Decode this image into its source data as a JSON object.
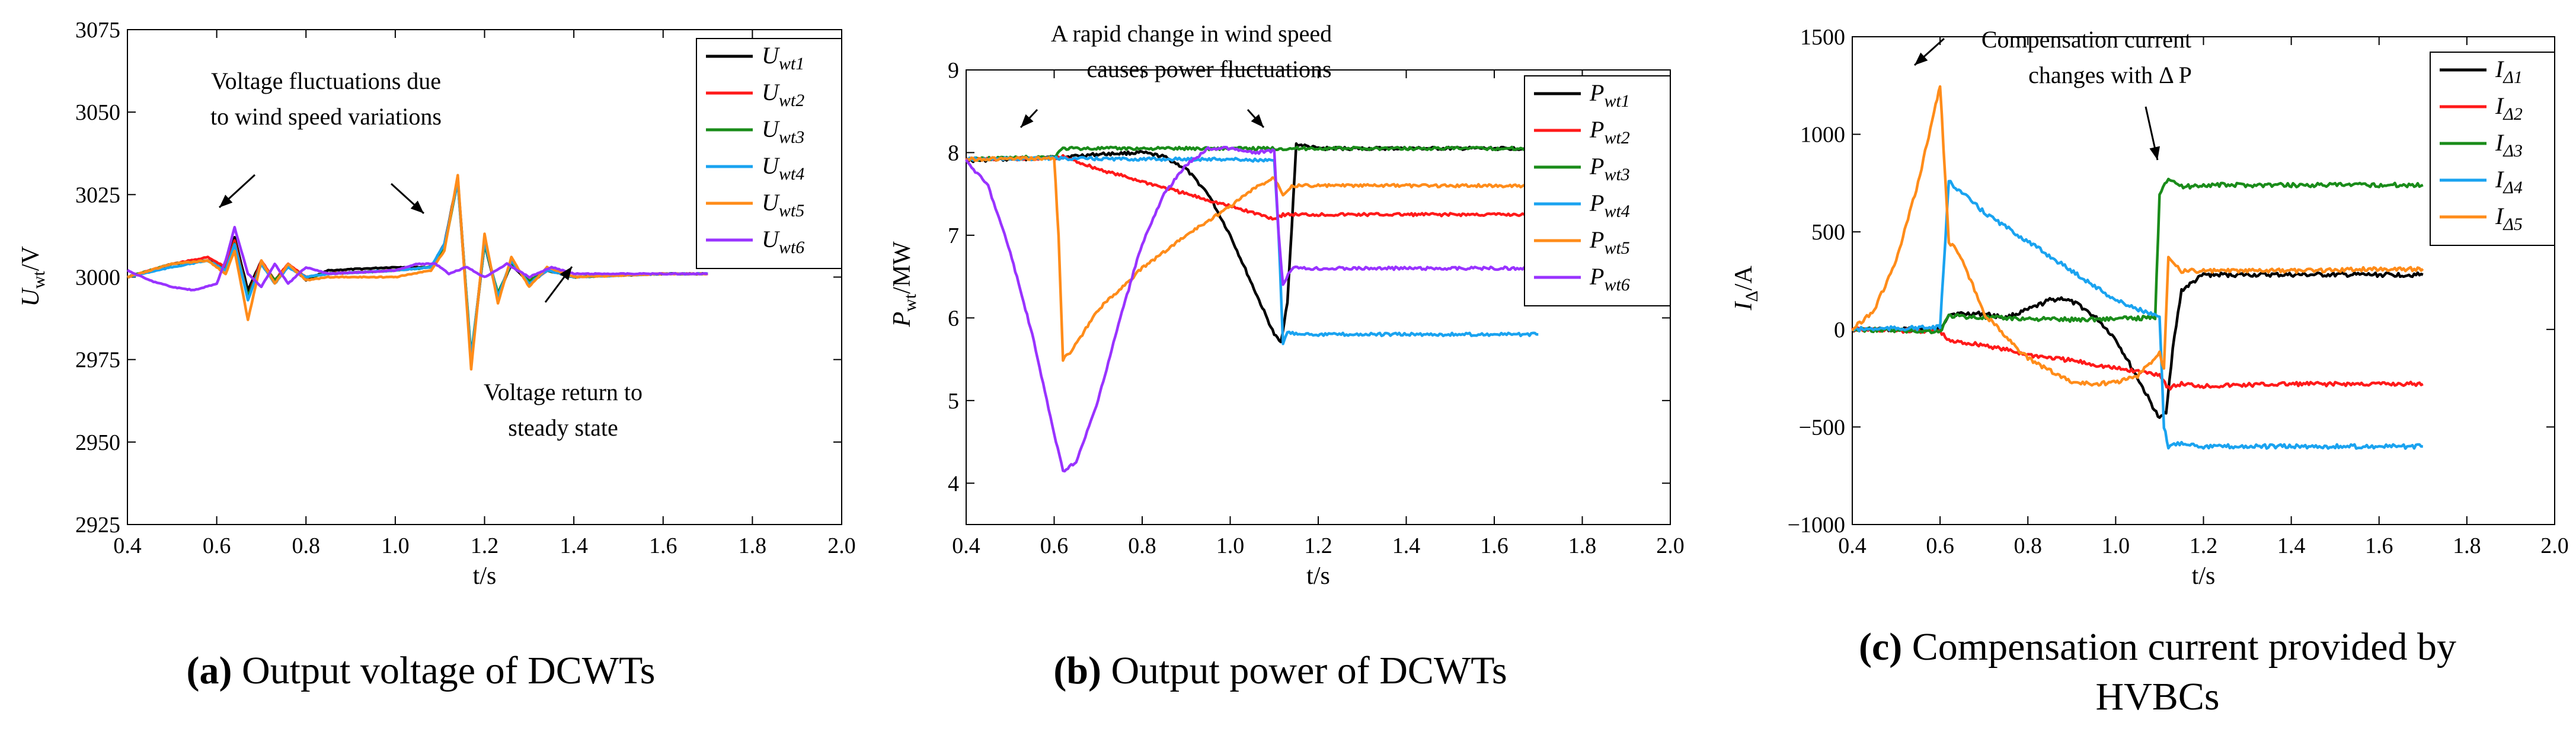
{
  "colors": {
    "black": "#000000",
    "red": "#ff1a1a",
    "green": "#1a8c1a",
    "blue": "#1aa3f0",
    "orange": "#ff8c1a",
    "purple": "#9933ff"
  },
  "chart_data": [
    {
      "type": "line",
      "id": "a",
      "caption_letter": "(a)",
      "caption_text": "Output voltage of DCWTs",
      "xlabel": "t/s",
      "ylabel_main": "U",
      "ylabel_sub": "wt",
      "ylabel_unit": "/V",
      "xlim": [
        0.4,
        2.0
      ],
      "ylim": [
        2925,
        3075
      ],
      "xticks": [
        0.4,
        0.6,
        0.8,
        1.0,
        1.2,
        1.4,
        1.6,
        1.8,
        2.0
      ],
      "xtick_labels": [
        "0.4",
        "0.6",
        "0.8",
        "1.0",
        "1.2",
        "1.4",
        "1.6",
        "1.8",
        "2.0"
      ],
      "yticks": [
        2925,
        2950,
        2975,
        3000,
        3025,
        3050,
        3075
      ],
      "ytick_labels": [
        "2925",
        "2950",
        "2975",
        "3000",
        "3025",
        "3050",
        "3075"
      ],
      "legend": [
        {
          "main": "U",
          "sub": "wt1",
          "color": "#000000"
        },
        {
          "main": "U",
          "sub": "wt2",
          "color": "#ff1a1a"
        },
        {
          "main": "U",
          "sub": "wt3",
          "color": "#1a8c1a"
        },
        {
          "main": "U",
          "sub": "wt4",
          "color": "#1aa3f0"
        },
        {
          "main": "U",
          "sub": "wt5",
          "color": "#ff8c1a"
        },
        {
          "main": "U",
          "sub": "wt6",
          "color": "#9933ff"
        }
      ],
      "annotations": [
        {
          "lines": [
            "Voltage fluctuations due",
            "to wind speed variations"
          ]
        },
        {
          "lines": [
            "Voltage return to",
            "steady state"
          ]
        }
      ],
      "series": [
        {
          "name": "Uwt1",
          "color": "#000000",
          "x": [
            0.4,
            0.5,
            0.58,
            0.62,
            0.64,
            0.67,
            0.7,
            0.73,
            0.76,
            0.8,
            0.85,
            1.0,
            1.08,
            1.11,
            1.14,
            1.17,
            1.2,
            1.23,
            1.26,
            1.3,
            1.34,
            1.4,
            1.6,
            1.7
          ],
          "y": [
            3000,
            3004,
            3005,
            3003,
            3012,
            2996,
            3005,
            2998,
            3004,
            2999,
            3002,
            3003,
            3003,
            3010,
            3030,
            2975,
            3010,
            2994,
            3004,
            2998,
            3002,
            3000,
            3001,
            3001
          ]
        },
        {
          "name": "Uwt2",
          "color": "#ff1a1a",
          "x": [
            0.4,
            0.5,
            0.58,
            0.62,
            0.64,
            0.67,
            0.7,
            0.73,
            0.76,
            0.8,
            0.85,
            1.0,
            1.08,
            1.11,
            1.14,
            1.17,
            1.2,
            1.23,
            1.26,
            1.3,
            1.34,
            1.4,
            1.6,
            1.7
          ],
          "y": [
            3000,
            3004,
            3006,
            3003,
            3011,
            2994,
            3005,
            2999,
            3004,
            3000,
            3001,
            3002,
            3003,
            3010,
            3029,
            2975,
            3011,
            2994,
            3005,
            2998,
            3002,
            3000,
            3001,
            3001
          ]
        },
        {
          "name": "Uwt3",
          "color": "#1a8c1a",
          "x": [
            0.4,
            0.5,
            0.58,
            0.62,
            0.64,
            0.67,
            0.7,
            0.73,
            0.76,
            0.8,
            0.85,
            1.0,
            1.08,
            1.11,
            1.14,
            1.17,
            1.2,
            1.23,
            1.26,
            1.3,
            1.34,
            1.4,
            1.6,
            1.7
          ],
          "y": [
            3000,
            3004,
            3005,
            3002,
            3010,
            2994,
            3004,
            2999,
            3003,
            3000,
            3001,
            3002,
            3003,
            3009,
            3029,
            2976,
            3010,
            2995,
            3004,
            2999,
            3002,
            3000,
            3001,
            3001
          ]
        },
        {
          "name": "Uwt4",
          "color": "#1aa3f0",
          "x": [
            0.4,
            0.5,
            0.58,
            0.62,
            0.64,
            0.67,
            0.7,
            0.73,
            0.76,
            0.8,
            0.85,
            1.0,
            1.08,
            1.11,
            1.14,
            1.17,
            1.2,
            1.23,
            1.26,
            1.3,
            1.34,
            1.4,
            1.6,
            1.7
          ],
          "y": [
            3000,
            3003,
            3005,
            3002,
            3010,
            2993,
            3004,
            2998,
            3003,
            3000,
            3001,
            3002,
            3003,
            3010,
            3029,
            2975,
            3011,
            2994,
            3005,
            2998,
            3002,
            3000,
            3001,
            3001
          ]
        },
        {
          "name": "Uwt5",
          "color": "#ff8c1a",
          "x": [
            0.4,
            0.5,
            0.58,
            0.62,
            0.64,
            0.67,
            0.7,
            0.73,
            0.76,
            0.8,
            0.85,
            1.0,
            1.08,
            1.11,
            1.14,
            1.17,
            1.2,
            1.23,
            1.26,
            1.3,
            1.34,
            1.4,
            1.6,
            1.7
          ],
          "y": [
            3000,
            3004,
            3005,
            3001,
            3008,
            2987,
            3005,
            2998,
            3004,
            2999,
            3000,
            3000,
            3002,
            3008,
            3031,
            2972,
            3013,
            2992,
            3006,
            2997,
            3003,
            3000,
            3001,
            3001
          ]
        },
        {
          "name": "Uwt6",
          "color": "#9933ff",
          "x": [
            0.4,
            0.45,
            0.5,
            0.55,
            0.6,
            0.62,
            0.64,
            0.67,
            0.7,
            0.73,
            0.76,
            0.8,
            0.85,
            1.0,
            1.05,
            1.09,
            1.12,
            1.16,
            1.2,
            1.25,
            1.3,
            1.35,
            1.4,
            1.6,
            1.7
          ],
          "y": [
            3002,
            2999,
            2997,
            2996,
            2998,
            3005,
            3015,
            3001,
            2997,
            3004,
            2998,
            3003,
            3001,
            3002,
            3004,
            3004,
            3001,
            3003,
            3000,
            3004,
            3000,
            3003,
            3001,
            3001,
            3001
          ]
        }
      ]
    },
    {
      "type": "line",
      "id": "b",
      "caption_letter": "(b)",
      "caption_text": "Output power of DCWTs",
      "xlabel": "t/s",
      "ylabel_main": "P",
      "ylabel_sub": "wt",
      "ylabel_unit": "/MW",
      "xlim": [
        0.4,
        2.0
      ],
      "ylim": [
        3.5,
        9
      ],
      "xticks": [
        0.4,
        0.6,
        0.8,
        1.0,
        1.2,
        1.4,
        1.6,
        1.8,
        2.0
      ],
      "xtick_labels": [
        "0.4",
        "0.6",
        "0.8",
        "1.0",
        "1.2",
        "1.4",
        "1.6",
        "1.8",
        "2.0"
      ],
      "yticks": [
        4,
        5,
        6,
        7,
        8,
        9
      ],
      "ytick_labels": [
        "4",
        "5",
        "6",
        "7",
        "8",
        "9"
      ],
      "legend": [
        {
          "main": "P",
          "sub": "wt1",
          "color": "#000000"
        },
        {
          "main": "P",
          "sub": "wt2",
          "color": "#ff1a1a"
        },
        {
          "main": "P",
          "sub": "wt3",
          "color": "#1a8c1a"
        },
        {
          "main": "P",
          "sub": "wt4",
          "color": "#1aa3f0"
        },
        {
          "main": "P",
          "sub": "wt5",
          "color": "#ff8c1a"
        },
        {
          "main": "P",
          "sub": "wt6",
          "color": "#9933ff"
        }
      ],
      "annotations": [
        {
          "lines": [
            "A rapid change in wind speed",
            "causes power fluctuations"
          ]
        }
      ],
      "series": [
        {
          "name": "Pwt1",
          "color": "#000000",
          "x": [
            0.4,
            0.5,
            0.6,
            0.7,
            0.8,
            0.85,
            0.9,
            0.95,
            1.0,
            1.05,
            1.1,
            1.115,
            1.13,
            1.14,
            1.15,
            1.2,
            1.4,
            1.6,
            1.7
          ],
          "y": [
            7.9,
            7.92,
            7.94,
            7.98,
            8.0,
            7.95,
            7.8,
            7.5,
            7.0,
            6.4,
            5.8,
            5.7,
            6.2,
            7.1,
            8.1,
            8.05,
            8.05,
            8.05,
            8.05
          ]
        },
        {
          "name": "Pwt2",
          "color": "#ff1a1a",
          "x": [
            0.4,
            0.6,
            0.62,
            0.7,
            0.8,
            0.9,
            1.0,
            1.1,
            1.12,
            1.2,
            1.4,
            1.6,
            1.7
          ],
          "y": [
            7.92,
            7.93,
            7.95,
            7.8,
            7.65,
            7.5,
            7.35,
            7.2,
            7.25,
            7.25,
            7.25,
            7.25,
            7.25
          ]
        },
        {
          "name": "Pwt3",
          "color": "#1a8c1a",
          "x": [
            0.4,
            0.6,
            0.62,
            0.7,
            0.8,
            0.9,
            1.0,
            1.1,
            1.2,
            1.4,
            1.6,
            1.7
          ],
          "y": [
            7.92,
            7.95,
            8.05,
            8.05,
            8.05,
            8.05,
            8.05,
            8.05,
            8.05,
            8.05,
            8.05,
            8.05
          ]
        },
        {
          "name": "Pwt4",
          "color": "#1aa3f0",
          "x": [
            0.4,
            0.6,
            0.8,
            1.0,
            1.1,
            1.11,
            1.12,
            1.13,
            1.2,
            1.4,
            1.6,
            1.7
          ],
          "y": [
            7.92,
            7.93,
            7.92,
            7.92,
            7.9,
            7.0,
            5.7,
            5.82,
            5.8,
            5.8,
            5.8,
            5.8
          ]
        },
        {
          "name": "Pwt5",
          "color": "#ff8c1a",
          "x": [
            0.4,
            0.6,
            0.61,
            0.62,
            0.64,
            0.7,
            0.8,
            0.9,
            1.0,
            1.05,
            1.1,
            1.12,
            1.14,
            1.2,
            1.4,
            1.6,
            1.7
          ],
          "y": [
            7.92,
            7.93,
            7.0,
            5.5,
            5.6,
            6.1,
            6.6,
            7.0,
            7.35,
            7.55,
            7.7,
            7.5,
            7.6,
            7.6,
            7.6,
            7.6,
            7.6
          ]
        },
        {
          "name": "Pwt6",
          "color": "#9933ff",
          "x": [
            0.4,
            0.45,
            0.5,
            0.55,
            0.6,
            0.62,
            0.65,
            0.7,
            0.75,
            0.8,
            0.85,
            0.9,
            0.95,
            1.0,
            1.05,
            1.1,
            1.11,
            1.12,
            1.14,
            1.2,
            1.4,
            1.6,
            1.7
          ],
          "y": [
            7.9,
            7.6,
            6.8,
            5.8,
            4.6,
            4.15,
            4.25,
            5.0,
            6.0,
            6.9,
            7.5,
            7.85,
            8.05,
            8.05,
            8.0,
            8.02,
            7.0,
            6.4,
            6.6,
            6.6,
            6.6,
            6.6,
            6.6
          ]
        }
      ]
    },
    {
      "type": "line",
      "id": "c",
      "caption_letter": "(c)",
      "caption_text": "Compensation current provided by HVBCs",
      "caption_lines": [
        "Compensation current provided by",
        "HVBCs"
      ],
      "xlabel": "t/s",
      "ylabel_main": "I",
      "ylabel_sub": "Δ",
      "ylabel_unit": "/A",
      "xlim": [
        0.4,
        2.0
      ],
      "ylim": [
        -1000,
        1500
      ],
      "xticks": [
        0.4,
        0.6,
        0.8,
        1.0,
        1.2,
        1.4,
        1.6,
        1.8,
        2.0
      ],
      "xtick_labels": [
        "0.4",
        "0.6",
        "0.8",
        "1.0",
        "1.2",
        "1.4",
        "1.6",
        "1.8",
        "2.0"
      ],
      "yticks": [
        -1000,
        -500,
        0,
        500,
        1000,
        1500
      ],
      "ytick_labels": [
        "−1000",
        "−500",
        "0",
        "500",
        "1000",
        "1500"
      ],
      "legend": [
        {
          "main": "I",
          "sub": "Δ1",
          "color": "#000000"
        },
        {
          "main": "I",
          "sub": "Δ2",
          "color": "#ff1a1a"
        },
        {
          "main": "I",
          "sub": "Δ3",
          "color": "#1a8c1a"
        },
        {
          "main": "I",
          "sub": "Δ4",
          "color": "#1aa3f0"
        },
        {
          "main": "I",
          "sub": "Δ5",
          "color": "#ff8c1a"
        }
      ],
      "annotations": [
        {
          "lines": [
            "Compensation current",
            "changes with  Δ P"
          ]
        }
      ],
      "series": [
        {
          "name": "IΔ1",
          "color": "#000000",
          "x": [
            0.4,
            0.55,
            0.6,
            0.62,
            0.7,
            0.75,
            0.8,
            0.85,
            0.88,
            0.92,
            0.96,
            1.0,
            1.05,
            1.1,
            1.115,
            1.13,
            1.15,
            1.2,
            1.4,
            1.6,
            1.7
          ],
          "y": [
            0,
            0,
            0,
            80,
            80,
            60,
            100,
            150,
            160,
            120,
            50,
            -50,
            -250,
            -460,
            -420,
            -100,
            200,
            280,
            280,
            280,
            280
          ]
        },
        {
          "name": "IΔ2",
          "color": "#ff1a1a",
          "x": [
            0.4,
            0.6,
            0.62,
            0.7,
            0.8,
            0.9,
            1.0,
            1.1,
            1.12,
            1.15,
            1.2,
            1.4,
            1.6,
            1.7
          ],
          "y": [
            0,
            -10,
            -60,
            -80,
            -130,
            -160,
            -200,
            -230,
            -300,
            -280,
            -290,
            -280,
            -280,
            -280
          ]
        },
        {
          "name": "IΔ3",
          "color": "#1a8c1a",
          "x": [
            0.4,
            0.6,
            0.62,
            0.7,
            0.8,
            0.9,
            1.0,
            1.09,
            1.1,
            1.12,
            1.15,
            1.2,
            1.4,
            1.6,
            1.7
          ],
          "y": [
            0,
            -10,
            70,
            60,
            55,
            50,
            55,
            60,
            700,
            780,
            730,
            740,
            740,
            740,
            740
          ]
        },
        {
          "name": "IΔ4",
          "color": "#1aa3f0",
          "x": [
            0.4,
            0.6,
            0.62,
            0.65,
            0.7,
            0.8,
            0.9,
            1.0,
            1.1,
            1.11,
            1.12,
            1.15,
            1.2,
            1.4,
            1.6,
            1.7
          ],
          "y": [
            0,
            10,
            760,
            700,
            600,
            450,
            300,
            150,
            60,
            -500,
            -600,
            -580,
            -600,
            -600,
            -600,
            -600
          ]
        },
        {
          "name": "IΔ5",
          "color": "#ff8c1a",
          "x": [
            0.4,
            0.45,
            0.5,
            0.55,
            0.59,
            0.6,
            0.62,
            0.64,
            0.67,
            0.7,
            0.8,
            0.9,
            0.95,
            1.0,
            1.05,
            1.1,
            1.11,
            1.12,
            1.15,
            1.2,
            1.4,
            1.6,
            1.7
          ],
          "y": [
            0,
            100,
            350,
            750,
            1150,
            1250,
            450,
            400,
            250,
            80,
            -150,
            -270,
            -280,
            -270,
            -240,
            -120,
            -200,
            380,
            300,
            300,
            300,
            310,
            310
          ]
        }
      ]
    }
  ]
}
